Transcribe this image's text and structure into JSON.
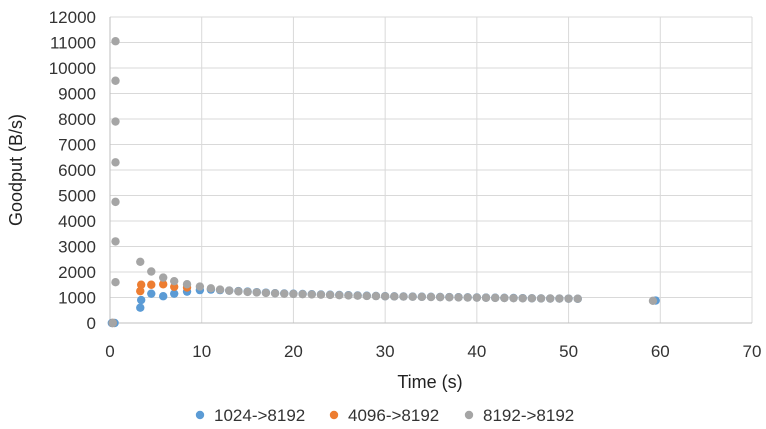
{
  "chart_data": {
    "type": "scatter",
    "title": "",
    "xlabel": "Time (s)",
    "ylabel": "Goodput (B/s)",
    "xlim": [
      0,
      70
    ],
    "ylim": [
      0,
      12000
    ],
    "x_ticks": [
      "0",
      "10",
      "20",
      "30",
      "40",
      "50",
      "60",
      "70"
    ],
    "y_ticks": [
      "0",
      "1000",
      "2000",
      "3000",
      "4000",
      "5000",
      "6000",
      "7000",
      "8000",
      "9000",
      "10000",
      "11000",
      "12000"
    ],
    "grid": true,
    "legend_position": "bottom",
    "series": [
      {
        "name": "1024->8192",
        "color": "#5b9bd5",
        "points": [
          [
            0.2,
            0
          ],
          [
            0.5,
            0
          ],
          [
            3.3,
            600
          ],
          [
            3.4,
            900
          ],
          [
            4.5,
            1150
          ],
          [
            5.8,
            1050
          ],
          [
            7.0,
            1150
          ],
          [
            8.4,
            1230
          ],
          [
            9.8,
            1290
          ],
          [
            11,
            1310
          ],
          [
            12,
            1290
          ],
          [
            13,
            1270
          ],
          [
            14,
            1250
          ],
          [
            15,
            1230
          ],
          [
            16,
            1210
          ],
          [
            17,
            1190
          ],
          [
            18,
            1170
          ],
          [
            19,
            1160
          ],
          [
            20,
            1150
          ],
          [
            21,
            1140
          ],
          [
            22,
            1130
          ],
          [
            23,
            1120
          ],
          [
            24,
            1110
          ],
          [
            25,
            1100
          ],
          [
            26,
            1090
          ],
          [
            27,
            1080
          ],
          [
            28,
            1070
          ],
          [
            29,
            1060
          ],
          [
            30,
            1050
          ],
          [
            31,
            1045
          ],
          [
            32,
            1040
          ],
          [
            33,
            1035
          ],
          [
            34,
            1030
          ],
          [
            35,
            1025
          ],
          [
            36,
            1020
          ],
          [
            37,
            1015
          ],
          [
            38,
            1010
          ],
          [
            39,
            1005
          ],
          [
            40,
            1000
          ],
          [
            41,
            995
          ],
          [
            42,
            990
          ],
          [
            43,
            985
          ],
          [
            44,
            980
          ],
          [
            45,
            975
          ],
          [
            46,
            970
          ],
          [
            47,
            965
          ],
          [
            48,
            960
          ],
          [
            49,
            958
          ],
          [
            50,
            955
          ],
          [
            51,
            950
          ],
          [
            59.5,
            880
          ]
        ]
      },
      {
        "name": "4096->8192",
        "color": "#ed7d31",
        "points": [
          [
            0.3,
            0
          ],
          [
            3.3,
            1250
          ],
          [
            3.4,
            1500
          ],
          [
            4.5,
            1500
          ],
          [
            5.8,
            1520
          ],
          [
            7.0,
            1420
          ],
          [
            8.4,
            1390
          ]
        ]
      },
      {
        "name": "8192->8192",
        "color": "#a5a5a5",
        "points": [
          [
            0.3,
            0
          ],
          [
            0.6,
            1600
          ],
          [
            0.6,
            3200
          ],
          [
            0.6,
            4750
          ],
          [
            0.6,
            6300
          ],
          [
            0.6,
            7900
          ],
          [
            0.6,
            9500
          ],
          [
            0.6,
            11050
          ],
          [
            3.3,
            2400
          ],
          [
            4.5,
            2020
          ],
          [
            5.8,
            1780
          ],
          [
            7.0,
            1640
          ],
          [
            8.4,
            1520
          ],
          [
            9.8,
            1430
          ],
          [
            11,
            1360
          ],
          [
            12,
            1310
          ],
          [
            13,
            1270
          ],
          [
            14,
            1240
          ],
          [
            15,
            1220
          ],
          [
            16,
            1200
          ],
          [
            17,
            1180
          ],
          [
            18,
            1165
          ],
          [
            19,
            1150
          ],
          [
            20,
            1140
          ],
          [
            21,
            1130
          ],
          [
            22,
            1120
          ],
          [
            23,
            1110
          ],
          [
            24,
            1100
          ],
          [
            25,
            1090
          ],
          [
            26,
            1080
          ],
          [
            27,
            1070
          ],
          [
            28,
            1060
          ],
          [
            29,
            1055
          ],
          [
            30,
            1048
          ],
          [
            31,
            1042
          ],
          [
            32,
            1036
          ],
          [
            33,
            1030
          ],
          [
            34,
            1025
          ],
          [
            35,
            1020
          ],
          [
            36,
            1015
          ],
          [
            37,
            1010
          ],
          [
            38,
            1005
          ],
          [
            39,
            1000
          ],
          [
            40,
            995
          ],
          [
            41,
            990
          ],
          [
            42,
            985
          ],
          [
            43,
            980
          ],
          [
            44,
            975
          ],
          [
            45,
            970
          ],
          [
            46,
            967
          ],
          [
            47,
            964
          ],
          [
            48,
            961
          ],
          [
            49,
            958
          ],
          [
            50,
            955
          ],
          [
            51,
            952
          ],
          [
            59.2,
            870
          ]
        ]
      }
    ]
  }
}
